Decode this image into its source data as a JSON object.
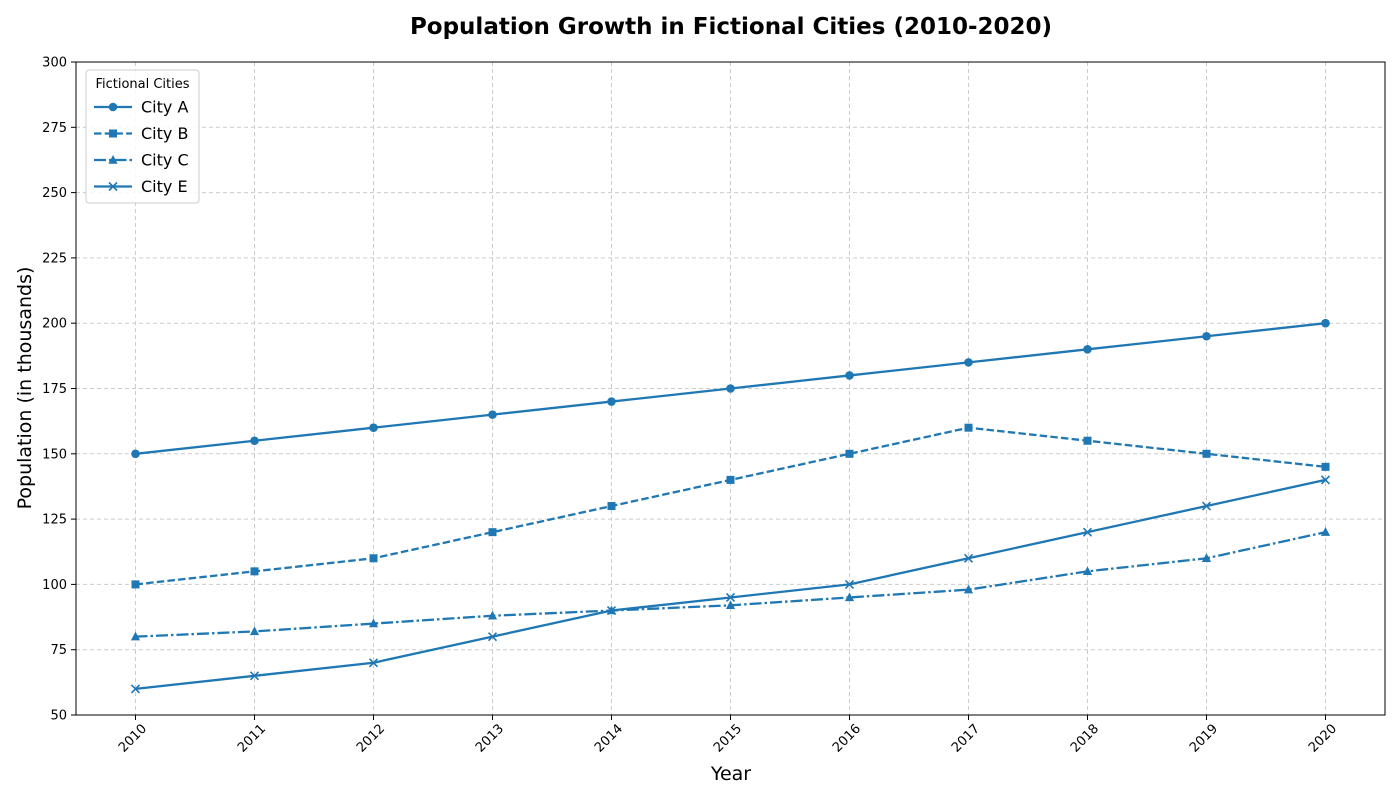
{
  "chart_data": {
    "type": "line",
    "title": "Population Growth in Fictional Cities (2010-2020)",
    "xlabel": "Year",
    "ylabel": "Population (in thousands)",
    "x": [
      "2010",
      "2011",
      "2012",
      "2013",
      "2014",
      "2015",
      "2016",
      "2017",
      "2018",
      "2019",
      "2020"
    ],
    "xlim": [
      2009.5,
      2020.5
    ],
    "ylim": [
      50,
      300
    ],
    "yticks": [
      50,
      75,
      100,
      125,
      150,
      175,
      200,
      225,
      250,
      275,
      300
    ],
    "grid": true,
    "legend": {
      "title": "Fictional Cities",
      "placement": "top-left"
    },
    "line_color": "#1f77b4",
    "series": [
      {
        "name": "City A",
        "marker": "circle",
        "linestyle": "solid",
        "values": [
          150,
          155,
          160,
          165,
          170,
          175,
          180,
          185,
          190,
          195,
          200
        ]
      },
      {
        "name": "City B",
        "marker": "square",
        "linestyle": "dashed",
        "values": [
          100,
          105,
          110,
          120,
          130,
          140,
          150,
          160,
          155,
          150,
          145
        ]
      },
      {
        "name": "City C",
        "marker": "triangle",
        "linestyle": "dashdot",
        "values": [
          80,
          82,
          85,
          88,
          90,
          92,
          95,
          98,
          105,
          110,
          120
        ]
      },
      {
        "name": "City E",
        "marker": "x",
        "linestyle": "solid",
        "values": [
          60,
          65,
          70,
          80,
          90,
          95,
          100,
          110,
          120,
          130,
          140
        ]
      }
    ]
  }
}
